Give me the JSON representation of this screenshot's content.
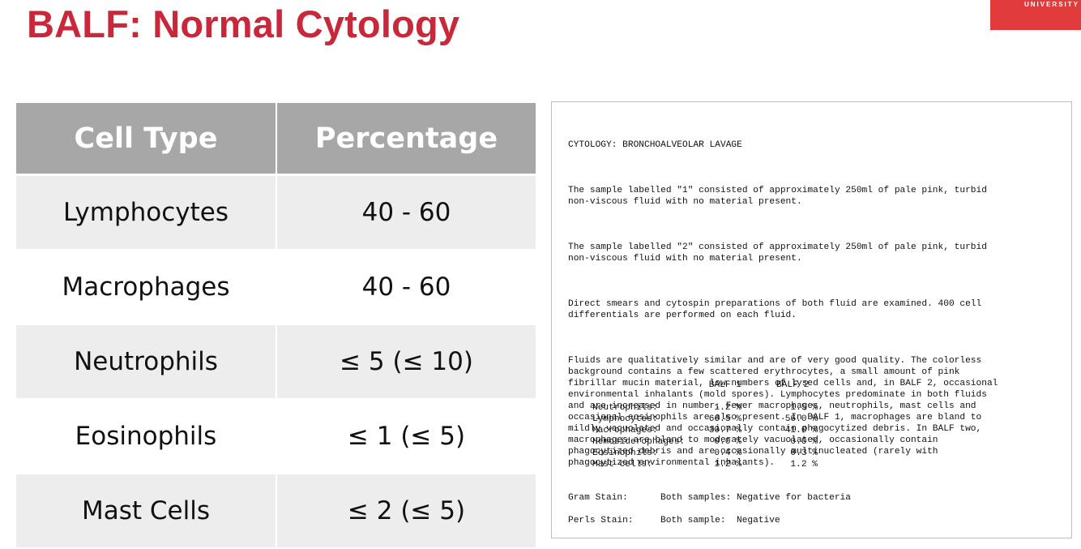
{
  "slide": {
    "title": "BALF: Normal Cytology",
    "logo_text": "UNIVERSITY",
    "accent_color": "#c8283a"
  },
  "table": {
    "headers": [
      "Cell Type",
      "Percentage"
    ],
    "rows": [
      {
        "cell_type": "Lymphocytes",
        "percentage": "40 - 60"
      },
      {
        "cell_type": "Macrophages",
        "percentage": "40 - 60"
      },
      {
        "cell_type": "Neutrophils",
        "percentage": "≤ 5 (≤ 10)"
      },
      {
        "cell_type": "Eosinophils",
        "percentage": "≤ 1 (≤ 5)"
      },
      {
        "cell_type": "Mast Cells",
        "percentage": "≤ 2 (≤ 5)"
      }
    ]
  },
  "report": {
    "heading": "CYTOLOGY: BRONCHOALVEOLAR LAVAGE",
    "para1": "The sample labelled \"1\" consisted of approximately 250ml of pale pink, turbid\nnon-viscous fluid with no material present.",
    "para2": "The sample labelled \"2\" consisted of approximately 250ml of pale pink, turbid\nnon-viscous fluid with no material present.",
    "para3": "Direct smears and cytospin preparations of both fluid are examined. 400 cell\ndifferentials are performed on each fluid.",
    "para4": "Fluids are qualitatively similar and are of very good quality. The colorless\nbackground contains a few scattered erythrocytes, a small amount of pink\nfibrillar mucin material, low numbers of lysed cells and, in BALF 2, occasional\nenvironmental inhalants (mold spores). Lymphocytes predominate in both fluids\nand are increased in number. Fewer macrophages, neutrophils, mast cells and\noccasional eosinophils are also present. In BALF 1, macrophages are bland to\nmildly vacuolated and occasionally contain phagocytized debris. In BALF two,\nmacrophages are bland to moderately vacuolated, occasionally contain\nphagocytized debris and are occasionally multinucleated (rarely with\nphagocytized environmental inhalants).",
    "differential": {
      "col1": "BALF 1",
      "col2": "BALF 2",
      "rows": [
        {
          "label": "Neutrophils:",
          "v1": "1.2 %",
          "v2": "1.5 %"
        },
        {
          "label": "Lymphocytes:",
          "v1": "66.5 %",
          "v2": "56.0 %"
        },
        {
          "label": "Macrophages:",
          "v1": "30.7 %",
          "v2": "41.0 %"
        },
        {
          "label": "Hemosiderophages:",
          "v1": "0.0 %",
          "v2": "0.0 %"
        },
        {
          "label": "Eosinophils:",
          "v1": "0.4 %",
          "v2": "0.3 %"
        },
        {
          "label": "Mast cells:",
          "v1": "1.2 %",
          "v2": "1.2 %"
        }
      ]
    },
    "gram_label": "Gram Stain:",
    "gram_value": "Both samples: Negative for bacteria",
    "perls_label": "Perls Stain:",
    "perls_value": "Both sample:  Negative"
  }
}
